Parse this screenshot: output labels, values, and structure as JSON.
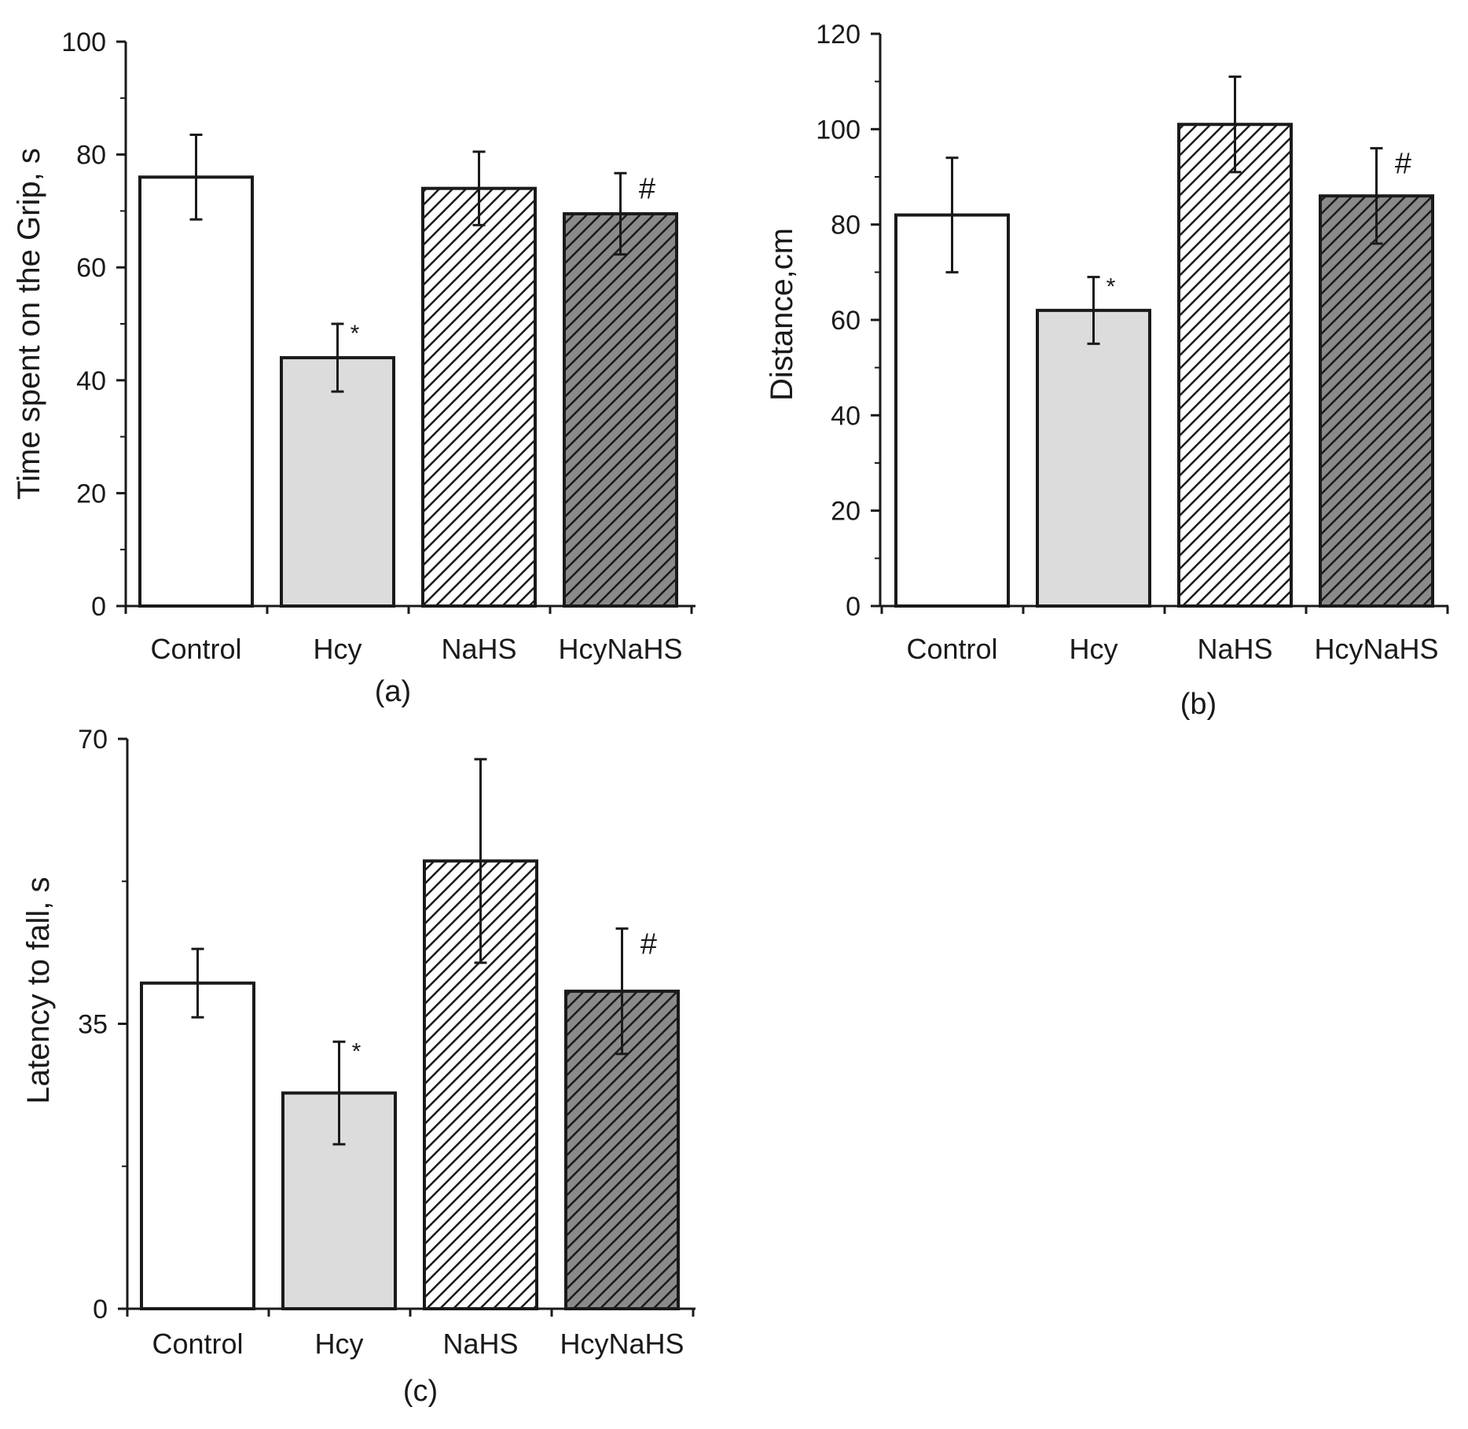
{
  "chart_data": [
    {
      "type": "bar",
      "panel_label": "(a)",
      "categories": [
        "Control",
        "Hcy",
        "NaHS",
        "HcyNaHS"
      ],
      "values": [
        76,
        44,
        74,
        69.5
      ],
      "errors": [
        7.5,
        6,
        6.5,
        7.2
      ],
      "annotations": [
        "",
        "*",
        "",
        "#"
      ],
      "ylabel": "Time spent on the Grip, s",
      "xlabel": "",
      "ylim": [
        0,
        100
      ],
      "yticks": [
        0,
        20,
        40,
        60,
        80,
        100
      ],
      "bar_styles": [
        "white",
        "light-gray",
        "hatch",
        "hatch-gray"
      ]
    },
    {
      "type": "bar",
      "panel_label": "(b)",
      "categories": [
        "Control",
        "Hcy",
        "NaHS",
        "HcyNaHS"
      ],
      "values": [
        82,
        62,
        101,
        86
      ],
      "errors": [
        12,
        7,
        10,
        10
      ],
      "annotations": [
        "",
        "*",
        "",
        "#"
      ],
      "ylabel": "Distance,cm",
      "xlabel": "",
      "ylim": [
        0,
        120
      ],
      "yticks": [
        0,
        20,
        40,
        60,
        80,
        100,
        120
      ],
      "bar_styles": [
        "white",
        "light-gray",
        "hatch",
        "hatch-gray"
      ]
    },
    {
      "type": "bar",
      "panel_label": "(c)",
      "categories": [
        "Control",
        "Hcy",
        "NaHS",
        "HcyNaHS"
      ],
      "values": [
        40,
        26.5,
        55,
        39
      ],
      "errors": [
        4.2,
        6.3,
        12.5,
        7.7
      ],
      "annotations": [
        "",
        "*",
        "",
        "#"
      ],
      "ylabel": "Latency  to fall, s",
      "xlabel": "",
      "ylim": [
        0,
        70
      ],
      "yticks": [
        0,
        35,
        70
      ],
      "bar_styles": [
        "white",
        "light-gray",
        "hatch",
        "hatch-gray"
      ]
    }
  ],
  "colors": {
    "bar_white": "#ffffff",
    "bar_light_gray": "#dcdcdc",
    "bar_hatch_bg": "#ffffff",
    "bar_hatch_gray_bg": "#8a8a8a",
    "ink": "#1a1a1a"
  }
}
